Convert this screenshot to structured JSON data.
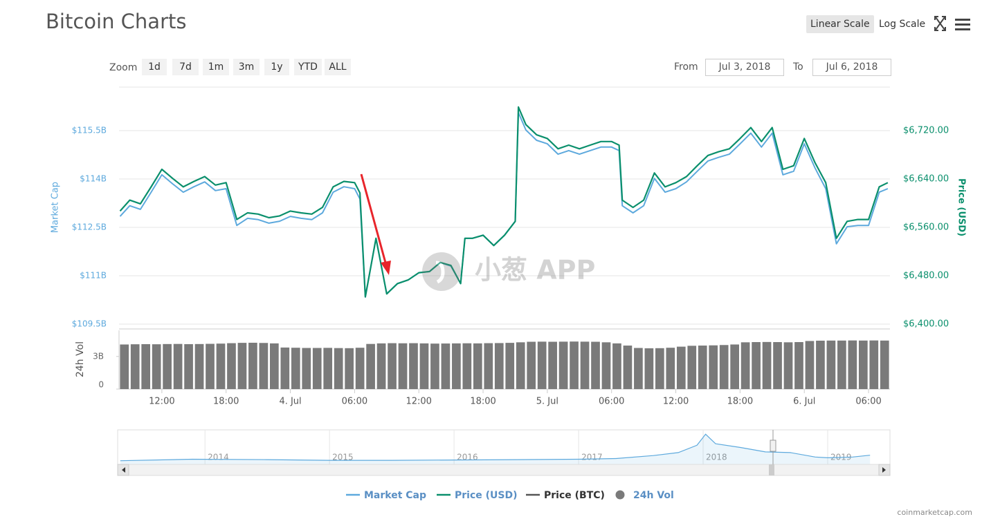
{
  "header": {
    "title": "Bitcoin Charts",
    "scale_buttons": [
      "Linear Scale",
      "Log Scale"
    ]
  },
  "zoom": {
    "label": "Zoom",
    "buttons": [
      "1d",
      "7d",
      "1m",
      "3m",
      "1y",
      "YTD",
      "ALL"
    ]
  },
  "range": {
    "from_label": "From",
    "from": "Jul 3, 2018",
    "to_label": "To",
    "to": "Jul 6, 2018"
  },
  "chart_data": [
    {
      "type": "line",
      "y_label": "Market Cap",
      "y2_label": "Price (USD)",
      "xlim": [
        8,
        80
      ],
      "ylim": [
        109.5,
        117
      ],
      "yticks": [
        {
          "value": 109.5,
          "label": "$109.5B"
        },
        {
          "value": 111,
          "label": "$111B"
        },
        {
          "value": 112.5,
          "label": "$112.5B"
        },
        {
          "value": 114,
          "label": "$114B"
        },
        {
          "value": 115.5,
          "label": "$115.5B"
        }
      ],
      "y2lim": [
        6400,
        6800
      ],
      "y2ticks": [
        {
          "value": 6400,
          "label": "$6,400.00"
        },
        {
          "value": 6480,
          "label": "$6,480.00"
        },
        {
          "value": 6560,
          "label": "$6,560.00"
        },
        {
          "value": 6640,
          "label": "$6,640.00"
        },
        {
          "value": 6720,
          "label": "$6,720.00"
        }
      ],
      "grid": true,
      "x": [
        8.1,
        9,
        10,
        11,
        12,
        13,
        14,
        15,
        16,
        17,
        18,
        19,
        20,
        21,
        22,
        23,
        24,
        25,
        26,
        27,
        28,
        29,
        30,
        30.5,
        31,
        32,
        33,
        34,
        35,
        36,
        37,
        38,
        39,
        39.9,
        40.3,
        41,
        42,
        43,
        44,
        45,
        45.3,
        46,
        47,
        48,
        49,
        50,
        51,
        52,
        53,
        54,
        54.7,
        55,
        56,
        57,
        58,
        59,
        60,
        61,
        62,
        63,
        64,
        65,
        66,
        67,
        68,
        69,
        70,
        71,
        72,
        73,
        74,
        75,
        76,
        77,
        78,
        79,
        79.8
      ],
      "series": [
        {
          "name": "Market Cap",
          "color": "#5da9dd",
          "axis": "y",
          "values": [
            112.84,
            113.17,
            113.06,
            113.59,
            114.13,
            113.85,
            113.59,
            113.76,
            113.91,
            113.64,
            113.7,
            112.56,
            112.78,
            112.74,
            112.63,
            112.69,
            112.84,
            112.78,
            112.74,
            112.95,
            113.59,
            113.76,
            113.7,
            113.38,
            110.34,
            112.16,
            110.44,
            110.76,
            110.87,
            111.09,
            111.13,
            111.41,
            111.3,
            110.76,
            112.16,
            112.16,
            112.26,
            111.94,
            112.26,
            112.69,
            116.06,
            115.52,
            115.2,
            115.09,
            114.77,
            114.88,
            114.77,
            114.88,
            114.99,
            114.99,
            114.88,
            113.17,
            112.95,
            113.17,
            114.02,
            113.59,
            113.7,
            113.91,
            114.24,
            114.56,
            114.67,
            114.77,
            115.09,
            115.42,
            114.99,
            115.42,
            114.13,
            114.24,
            115.09,
            114.34,
            113.7,
            111.99,
            112.52,
            112.56,
            112.56,
            113.59,
            113.7
          ]
        },
        {
          "name": "Price (USD)",
          "color": "#0a8f6c",
          "axis": "y2",
          "values": [
            6587,
            6605,
            6599,
            6627,
            6656,
            6641,
            6627,
            6636,
            6644,
            6630,
            6634,
            6573,
            6584,
            6582,
            6576,
            6579,
            6587,
            6584,
            6582,
            6593,
            6627,
            6636,
            6634,
            6617,
            6445,
            6542,
            6450,
            6467,
            6473,
            6485,
            6487,
            6502,
            6497,
            6467,
            6542,
            6542,
            6547,
            6530,
            6547,
            6570,
            6759,
            6730,
            6713,
            6707,
            6690,
            6696,
            6690,
            6696,
            6702,
            6702,
            6696,
            6605,
            6593,
            6605,
            6650,
            6627,
            6634,
            6644,
            6662,
            6679,
            6685,
            6690,
            6707,
            6725,
            6702,
            6725,
            6656,
            6662,
            6707,
            6667,
            6634,
            6542,
            6570,
            6573,
            6573,
            6627,
            6634
          ]
        }
      ],
      "inactive_series": [
        {
          "name": "Price (BTC)",
          "color": "#555555"
        }
      ]
    },
    {
      "type": "bar",
      "y_label": "24h Vol",
      "xlim": [
        8,
        80
      ],
      "xticks": [
        {
          "value": 12,
          "label": "12:00"
        },
        {
          "value": 18,
          "label": "18:00"
        },
        {
          "value": 24,
          "label": "4. Jul"
        },
        {
          "value": 30,
          "label": "06:00"
        },
        {
          "value": 36,
          "label": "12:00"
        },
        {
          "value": 42,
          "label": "18:00"
        },
        {
          "value": 48,
          "label": "5. Jul"
        },
        {
          "value": 54,
          "label": "06:00"
        },
        {
          "value": 60,
          "label": "12:00"
        },
        {
          "value": 66,
          "label": "18:00"
        },
        {
          "value": 72,
          "label": "6. Jul"
        },
        {
          "value": 78,
          "label": "06:00"
        }
      ],
      "ylim": [
        0,
        5.4
      ],
      "yticks": [
        0,
        {
          "value": 3,
          "label": "3B"
        }
      ],
      "x": [
        8.5,
        9.5,
        10.5,
        11.5,
        12.5,
        13.5,
        14.5,
        15.5,
        16.5,
        17.5,
        18.5,
        19.5,
        20.5,
        21.5,
        22.5,
        23.5,
        24.5,
        25.5,
        26.5,
        27.5,
        28.5,
        29.5,
        30.5,
        31.5,
        32.5,
        33.5,
        34.5,
        35.5,
        36.5,
        37.5,
        38.5,
        39.5,
        40.5,
        41.5,
        42.5,
        43.5,
        44.5,
        45.5,
        46.5,
        47.5,
        48.5,
        49.5,
        50.5,
        51.5,
        52.5,
        53.5,
        54.5,
        55.5,
        56.5,
        57.5,
        58.5,
        59.5,
        60.5,
        61.5,
        62.5,
        63.5,
        64.5,
        65.5,
        66.5,
        67.5,
        68.5,
        69.5,
        70.5,
        71.5,
        72.5,
        73.5,
        74.5,
        75.5,
        76.5,
        77.5,
        78.5,
        79.5
      ],
      "series": [
        {
          "name": "24h Vol",
          "color": "#7a7a7a",
          "values": [
            4.1,
            4.12,
            4.13,
            4.12,
            4.14,
            4.15,
            4.13,
            4.14,
            4.16,
            4.18,
            4.22,
            4.25,
            4.26,
            4.24,
            4.2,
            3.82,
            3.8,
            3.78,
            3.78,
            3.79,
            3.77,
            3.76,
            3.8,
            4.15,
            4.2,
            4.22,
            4.21,
            4.22,
            4.2,
            4.18,
            4.19,
            4.2,
            4.21,
            4.2,
            4.22,
            4.23,
            4.25,
            4.3,
            4.35,
            4.36,
            4.35,
            4.36,
            4.37,
            4.36,
            4.35,
            4.3,
            4.2,
            4.0,
            3.78,
            3.75,
            3.76,
            3.8,
            3.9,
            3.98,
            4.0,
            4.02,
            4.05,
            4.1,
            4.3,
            4.32,
            4.33,
            4.32,
            4.3,
            4.32,
            4.42,
            4.45,
            4.46,
            4.46,
            4.47,
            4.46,
            4.47,
            4.46
          ]
        }
      ]
    },
    {
      "type": "area",
      "xlim": [
        2013.31,
        2019.5
      ],
      "xticks": [
        2014,
        2015,
        2016,
        2017,
        2018,
        2019
      ],
      "ylim": [
        0,
        900
      ],
      "x": [
        2013.32,
        2013.9,
        2014.5,
        2015.0,
        2015.5,
        2016.0,
        2016.5,
        2017.0,
        2017.3,
        2017.6,
        2017.8,
        2017.95,
        2018.02,
        2018.1,
        2018.3,
        2018.5,
        2018.7,
        2018.9,
        2019.0,
        2019.2,
        2019.34
      ],
      "series": [
        {
          "color": "#5da9dd",
          "values": [
            100,
            140,
            130,
            110,
            110,
            120,
            130,
            140,
            160,
            240,
            320,
            520,
            820,
            560,
            460,
            340,
            320,
            200,
            180,
            200,
            250
          ]
        }
      ]
    }
  ],
  "watermark": "小葱 APP",
  "credit": "coinmarketcap.com"
}
